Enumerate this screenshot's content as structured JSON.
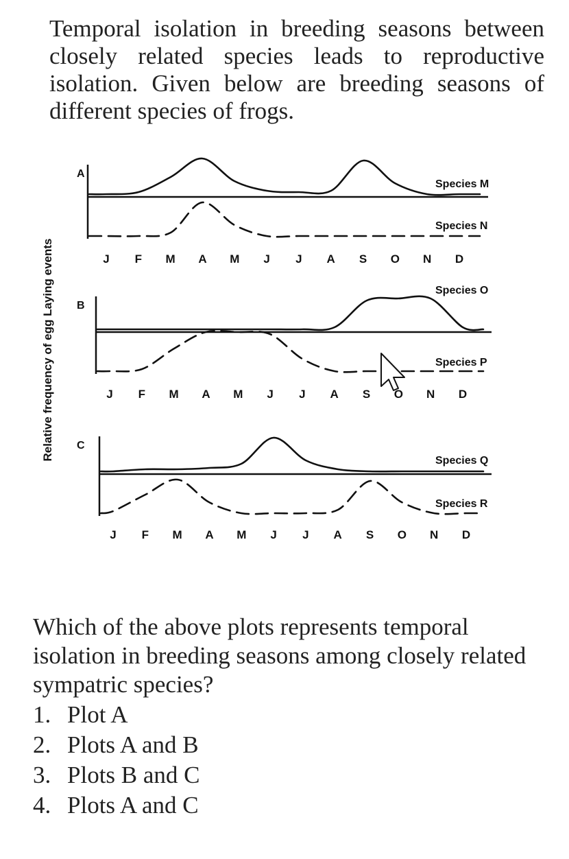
{
  "intro_text": "Temporal isolation in breeding seasons between closely related species leads to reproductive isolation. Given below are breeding seasons of different species of frogs.",
  "question_text": "Which of the above plots represents temporal isolation in breeding seasons among closely related sympatric species?",
  "options": [
    {
      "number": "1.",
      "label": "Plot A"
    },
    {
      "number": "2.",
      "label": "Plots A and B"
    },
    {
      "number": "3.",
      "label": "Plots B and C"
    },
    {
      "number": "4.",
      "label": "Plots A and C"
    }
  ],
  "chart_data": {
    "type": "line",
    "ylabel": "Relative frequency of egg Laying events",
    "plots": [
      {
        "label": "A",
        "months": [
          "J",
          "F",
          "M",
          "A",
          "M",
          "J",
          "J",
          "A",
          "S",
          "O",
          "N",
          "D"
        ],
        "series": [
          {
            "name": "Species M",
            "style": "solid",
            "values": [
              0.0,
              0.05,
              0.45,
              0.95,
              0.35,
              0.1,
              0.05,
              0.1,
              0.9,
              0.3,
              0.0,
              0.0
            ]
          },
          {
            "name": "Species N",
            "style": "dashed",
            "values": [
              0.0,
              0.0,
              0.1,
              0.9,
              0.3,
              0.0,
              0.0,
              0.0,
              0.0,
              0.0,
              0.0,
              0.0
            ]
          }
        ]
      },
      {
        "label": "B",
        "months": [
          "J",
          "F",
          "M",
          "A",
          "M",
          "J",
          "J",
          "A",
          "S",
          "O",
          "N",
          "D"
        ],
        "series": [
          {
            "name": "Species O",
            "style": "solid",
            "values": [
              0.0,
              0.0,
              0.0,
              0.0,
              0.0,
              0.0,
              0.0,
              0.05,
              0.7,
              0.75,
              0.75,
              0.05
            ]
          },
          {
            "name": "Species P",
            "style": "dashed",
            "values": [
              0.0,
              0.05,
              0.55,
              0.95,
              0.95,
              0.9,
              0.3,
              0.0,
              0.0,
              0.0,
              0.0,
              0.0
            ]
          }
        ]
      },
      {
        "label": "C",
        "months": [
          "J",
          "F",
          "M",
          "A",
          "M",
          "J",
          "J",
          "A",
          "S",
          "O",
          "N",
          "D"
        ],
        "series": [
          {
            "name": "Species Q",
            "style": "solid",
            "values": [
              0.0,
              0.05,
              0.05,
              0.1,
              0.2,
              0.9,
              0.3,
              0.05,
              0.0,
              0.0,
              0.0,
              0.0
            ]
          },
          {
            "name": "Species R",
            "style": "dashed",
            "values": [
              0.05,
              0.5,
              0.9,
              0.3,
              0.0,
              0.0,
              0.0,
              0.1,
              0.85,
              0.3,
              0.0,
              0.0
            ]
          }
        ]
      }
    ]
  }
}
